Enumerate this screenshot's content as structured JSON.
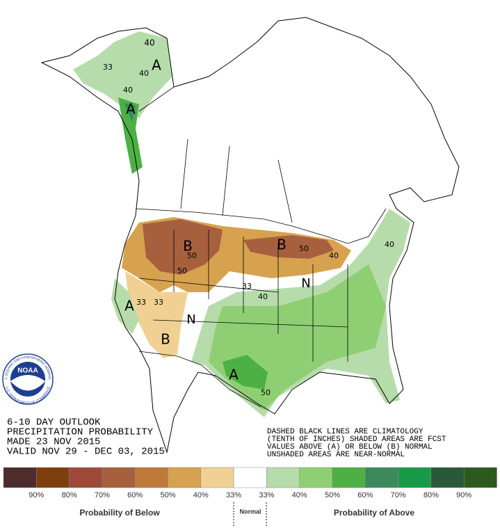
{
  "logo": {
    "name": "NOAA",
    "ring_top": "NATIONAL OCEANIC AND ATMOSPHERIC ADMINISTRATION",
    "ring_bottom": "U.S. DEPARTMENT OF COMMERCE"
  },
  "header": {
    "lines": [
      "6-10 DAY OUTLOOK",
      "PRECIPITATION PROBABILITY",
      "MADE  23 NOV 2015",
      "VALID  NOV 29 - DEC 03, 2015"
    ]
  },
  "notes": {
    "lines": [
      "DASHED BLACK LINES ARE CLIMATOLOGY",
      "(TENTH OF INCHES) SHADED AREAS ARE FCST",
      "VALUES ABOVE (A) OR BELOW (B) NORMAL",
      "UNSHADED AREAS ARE NEAR-NORMAL"
    ]
  },
  "map": {
    "labels": [
      "40",
      "A",
      "33",
      "40",
      "40",
      "A",
      "B",
      "50",
      "B",
      "50",
      "40",
      "40",
      "50",
      "A",
      "33",
      "33",
      "N",
      "B",
      "33",
      "40",
      "N",
      "A",
      "50"
    ]
  },
  "legend": {
    "colors": [
      "#4e2c2c",
      "#7e3f0c",
      "#9d4a3b",
      "#a7603e",
      "#c1793a",
      "#d7a24f",
      "#f1d193",
      "#ffffff",
      "#b6dcab",
      "#8fcf74",
      "#4db044",
      "#3c8a5b",
      "#1a9a48",
      "#29583a",
      "#2c5a1e"
    ],
    "labels": [
      "90%",
      "80%",
      "70%",
      "60%",
      "50%",
      "40%",
      "33%",
      "33%",
      "40%",
      "50%",
      "60%",
      "70%",
      "80%",
      "90%"
    ],
    "below": "Probability of Below",
    "normal": "Normal",
    "above": "Probability of Above"
  }
}
